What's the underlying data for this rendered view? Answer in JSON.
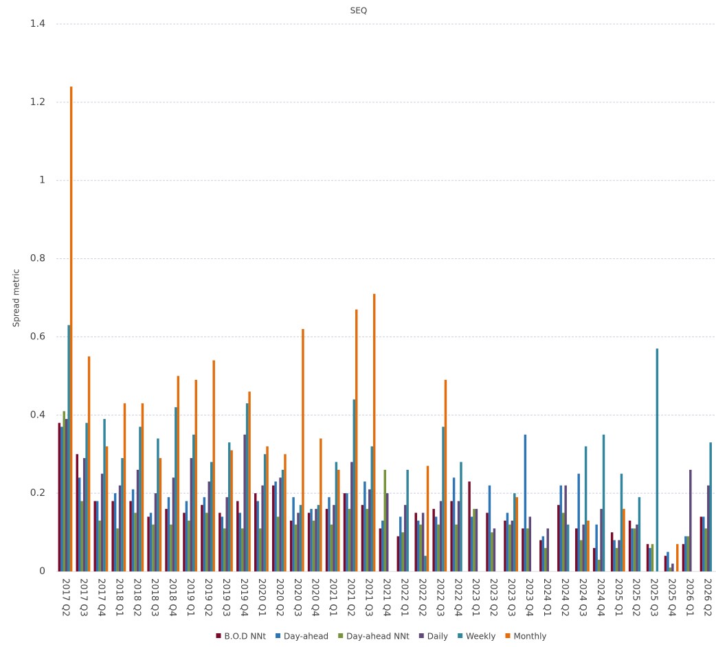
{
  "chart_data": {
    "type": "bar",
    "title": "SEQ",
    "y_label": "Spread metric",
    "categories": [
      "2017 Q2",
      "2017 Q3",
      "2017 Q4",
      "2018 Q1",
      "2018 Q2",
      "2018 Q3",
      "2018 Q4",
      "2019 Q1",
      "2019 Q2",
      "2019 Q3",
      "2019 Q4",
      "2020 Q1",
      "2020 Q2",
      "2020 Q3",
      "2020 Q4",
      "2021 Q1",
      "2021 Q2",
      "2021 Q3",
      "2021 Q4",
      "2022 Q1",
      "2022 Q2",
      "2022 Q3",
      "2022 Q4",
      "2023 Q1",
      "2023 Q2",
      "2023 Q3",
      "2023 Q4",
      "2024 Q1",
      "2024 Q2",
      "2024 Q3",
      "2024 Q4",
      "2025 Q1",
      "2025 Q2",
      "2025 Q3",
      "2025 Q4",
      "2026 Q1",
      "2026 Q2"
    ],
    "series": [
      {
        "name": "B.O.D NNt",
        "color": "#7b0a2a",
        "values": [
          0.38,
          0.3,
          0.18,
          0.18,
          0.18,
          0.14,
          0.16,
          0.15,
          0.17,
          0.15,
          0.18,
          0.2,
          0.22,
          0.13,
          0.15,
          0.16,
          0.2,
          0.17,
          0.11,
          0.09,
          0.15,
          0.16,
          0.18,
          0.23,
          0.15,
          0.13,
          0.11,
          0.08,
          0.17,
          0.11,
          0.06,
          0.1,
          0.13,
          0.07,
          0.04,
          0.07,
          0.14
        ]
      },
      {
        "name": "Day-ahead",
        "color": "#2e75b6",
        "values": [
          0.37,
          0.24,
          0.18,
          0.2,
          0.21,
          0.15,
          0.19,
          0.18,
          0.19,
          0.14,
          0.15,
          0.18,
          0.23,
          0.19,
          0.16,
          0.19,
          0.2,
          0.23,
          0.13,
          0.14,
          0.13,
          0.14,
          0.24,
          0.14,
          0.22,
          0.15,
          0.35,
          0.09,
          0.22,
          0.25,
          0.12,
          0.08,
          0.11,
          0.06,
          0.05,
          0.09,
          0.14
        ]
      },
      {
        "name": "Day-ahead NNt",
        "color": "#77933c",
        "values": [
          0.41,
          0.18,
          0.13,
          0.11,
          0.15,
          0.12,
          0.12,
          0.13,
          0.15,
          0.11,
          0.11,
          0.11,
          0.14,
          0.12,
          0.13,
          0.12,
          0.16,
          0.16,
          0.26,
          0.1,
          0.12,
          0.12,
          0.12,
          0.16,
          0.1,
          0.12,
          0.11,
          0.06,
          0.15,
          0.08,
          0.03,
          0.06,
          0.11,
          0.07,
          0.01,
          0.09,
          0.11
        ]
      },
      {
        "name": "Daily",
        "color": "#5f497a",
        "values": [
          0.39,
          0.29,
          0.25,
          0.22,
          0.26,
          0.2,
          0.24,
          0.29,
          0.23,
          0.19,
          0.35,
          0.22,
          0.24,
          0.15,
          0.16,
          0.17,
          0.28,
          0.21,
          0.2,
          0.17,
          0.15,
          0.18,
          0.18,
          0.16,
          0.11,
          0.13,
          0.14,
          0.11,
          0.22,
          0.12,
          0.16,
          0.08,
          0.12,
          null,
          0.02,
          0.26,
          0.22
        ]
      },
      {
        "name": "Weekly",
        "color": "#31859c",
        "values": [
          0.63,
          0.38,
          0.39,
          0.29,
          0.37,
          0.34,
          0.42,
          0.35,
          0.28,
          0.33,
          0.43,
          0.3,
          0.26,
          0.17,
          0.17,
          0.28,
          0.44,
          0.32,
          null,
          0.26,
          0.04,
          0.37,
          0.28,
          null,
          null,
          0.2,
          null,
          null,
          0.12,
          0.32,
          0.35,
          0.25,
          0.19,
          0.57,
          null,
          null,
          0.33
        ]
      },
      {
        "name": "Monthly",
        "color": "#e46c0a",
        "values": [
          1.24,
          0.55,
          0.32,
          0.43,
          0.43,
          0.29,
          0.5,
          0.49,
          0.54,
          0.31,
          0.46,
          0.32,
          0.3,
          0.62,
          0.34,
          0.26,
          0.67,
          0.71,
          null,
          null,
          0.27,
          0.49,
          null,
          null,
          null,
          0.19,
          null,
          null,
          null,
          0.13,
          null,
          0.16,
          null,
          null,
          0.07,
          null,
          null
        ]
      }
    ],
    "ylim": [
      0,
      1.4
    ],
    "yticks": [
      0,
      0.2,
      0.4,
      0.6,
      0.8,
      1,
      1.2,
      1.4
    ],
    "grid": true,
    "legend": "bottom"
  }
}
